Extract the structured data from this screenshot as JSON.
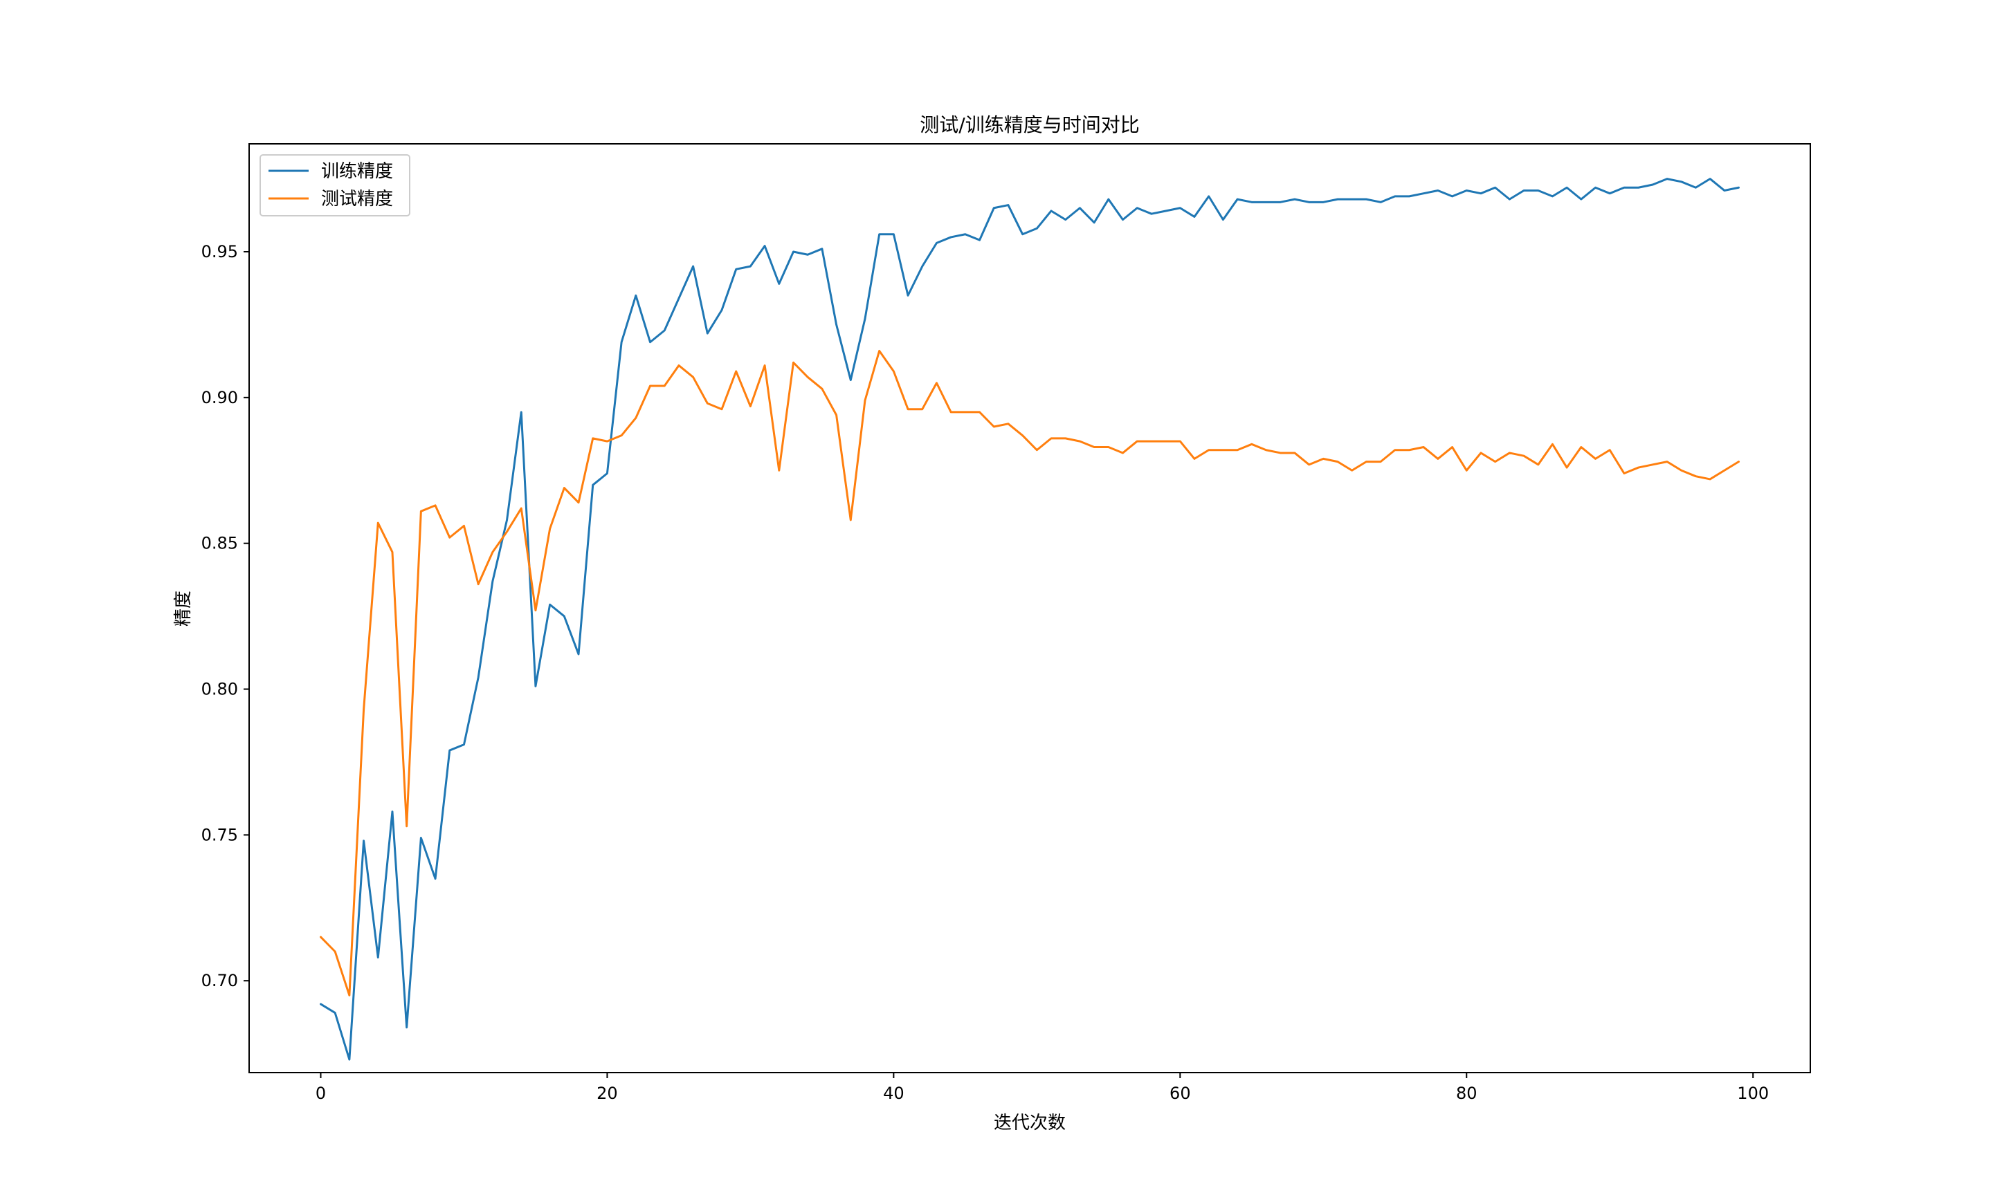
{
  "chart_data": {
    "type": "line",
    "title": "测试/训练精度与时间对比",
    "xlabel": "迭代次数",
    "ylabel": "精度",
    "xlim": [
      -5,
      104
    ],
    "ylim": [
      0.6685,
      0.987
    ],
    "xticks": [
      0,
      20,
      40,
      60,
      80,
      100
    ],
    "xtick_labels": [
      "0",
      "20",
      "40",
      "60",
      "80",
      "100"
    ],
    "yticks": [
      0.7,
      0.75,
      0.8,
      0.85,
      0.9,
      0.95
    ],
    "ytick_labels": [
      "0.70",
      "0.75",
      "0.80",
      "0.85",
      "0.90",
      "0.95"
    ],
    "grid": false,
    "legend_position": "upper-left",
    "x": [
      0,
      1,
      2,
      3,
      4,
      5,
      6,
      7,
      8,
      9,
      10,
      11,
      12,
      13,
      14,
      15,
      16,
      17,
      18,
      19,
      20,
      21,
      22,
      23,
      24,
      25,
      26,
      27,
      28,
      29,
      30,
      31,
      32,
      33,
      34,
      35,
      36,
      37,
      38,
      39,
      40,
      41,
      42,
      43,
      44,
      45,
      46,
      47,
      48,
      49,
      50,
      51,
      52,
      53,
      54,
      55,
      56,
      57,
      58,
      59,
      60,
      61,
      62,
      63,
      64,
      65,
      66,
      67,
      68,
      69,
      70,
      71,
      72,
      73,
      74,
      75,
      76,
      77,
      78,
      79,
      80,
      81,
      82,
      83,
      84,
      85,
      86,
      87,
      88,
      89,
      90,
      91,
      92,
      93,
      94,
      95,
      96,
      97,
      98,
      99
    ],
    "series": [
      {
        "name": "训练精度",
        "color": "#1f77b4",
        "values": [
          0.692,
          0.689,
          0.673,
          0.748,
          0.708,
          0.758,
          0.684,
          0.749,
          0.735,
          0.779,
          0.781,
          0.804,
          0.837,
          0.858,
          0.895,
          0.801,
          0.829,
          0.825,
          0.812,
          0.87,
          0.874,
          0.919,
          0.935,
          0.919,
          0.923,
          0.934,
          0.945,
          0.922,
          0.93,
          0.944,
          0.945,
          0.952,
          0.939,
          0.95,
          0.949,
          0.951,
          0.925,
          0.906,
          0.927,
          0.956,
          0.956,
          0.935,
          0.945,
          0.953,
          0.955,
          0.956,
          0.954,
          0.965,
          0.966,
          0.956,
          0.958,
          0.964,
          0.961,
          0.965,
          0.96,
          0.968,
          0.961,
          0.965,
          0.963,
          0.964,
          0.965,
          0.962,
          0.969,
          0.961,
          0.968,
          0.967,
          0.967,
          0.967,
          0.968,
          0.967,
          0.967,
          0.968,
          0.968,
          0.968,
          0.967,
          0.969,
          0.969,
          0.97,
          0.971,
          0.969,
          0.971,
          0.97,
          0.972,
          0.968,
          0.971,
          0.971,
          0.969,
          0.972,
          0.968,
          0.972,
          0.97,
          0.972,
          0.972,
          0.973,
          0.975,
          0.974,
          0.972,
          0.975,
          0.971,
          0.972
        ]
      },
      {
        "name": "测试精度",
        "color": "#ff7f0e",
        "values": [
          0.715,
          0.71,
          0.695,
          0.793,
          0.857,
          0.847,
          0.753,
          0.861,
          0.863,
          0.852,
          0.856,
          0.836,
          0.847,
          0.854,
          0.862,
          0.827,
          0.855,
          0.869,
          0.864,
          0.886,
          0.885,
          0.887,
          0.893,
          0.904,
          0.904,
          0.911,
          0.907,
          0.898,
          0.896,
          0.909,
          0.897,
          0.911,
          0.875,
          0.912,
          0.907,
          0.903,
          0.894,
          0.858,
          0.899,
          0.916,
          0.909,
          0.896,
          0.896,
          0.905,
          0.895,
          0.895,
          0.895,
          0.89,
          0.891,
          0.887,
          0.882,
          0.886,
          0.886,
          0.885,
          0.883,
          0.883,
          0.881,
          0.885,
          0.885,
          0.885,
          0.885,
          0.879,
          0.882,
          0.882,
          0.882,
          0.884,
          0.882,
          0.881,
          0.881,
          0.877,
          0.879,
          0.878,
          0.875,
          0.878,
          0.878,
          0.882,
          0.882,
          0.883,
          0.879,
          0.883,
          0.875,
          0.881,
          0.878,
          0.881,
          0.88,
          0.877,
          0.884,
          0.876,
          0.883,
          0.879,
          0.882,
          0.874,
          0.876,
          0.877,
          0.878,
          0.875,
          0.873,
          0.872,
          0.875,
          0.878
        ]
      }
    ]
  }
}
